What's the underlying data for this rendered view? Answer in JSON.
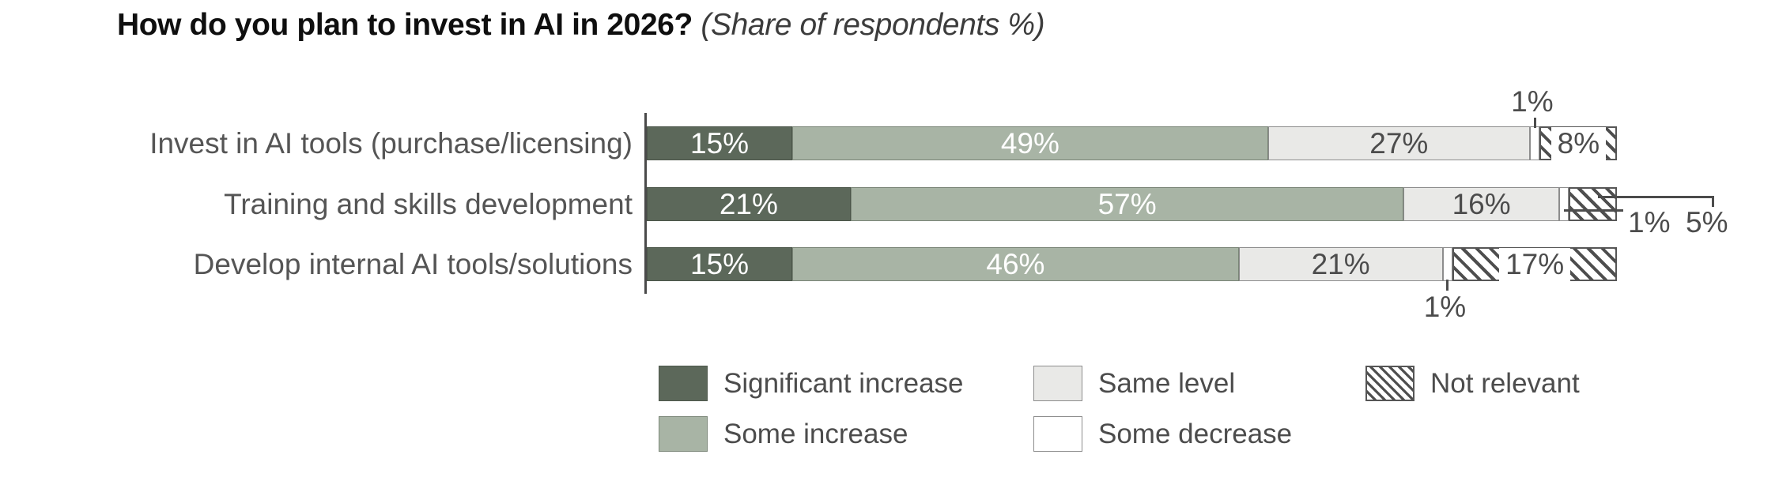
{
  "title": {
    "main": "How do you plan to invest in AI in 2026?",
    "subtitle": "(Share of respondents %)"
  },
  "chart_data": {
    "type": "bar",
    "orientation": "horizontal",
    "stacked": true,
    "unit": "%",
    "title": "How do you plan to invest in AI in 2026?",
    "subtitle": "(Share of respondents %)",
    "xlim": [
      0,
      100
    ],
    "grid": false,
    "legend_position": "bottom",
    "categories": [
      "Invest in AI tools (purchase/licensing)",
      "Training and skills development",
      "Develop internal AI tools/solutions"
    ],
    "series": [
      {
        "name": "Significant increase",
        "color": "#5c685a",
        "values": [
          15,
          21,
          15
        ]
      },
      {
        "name": "Some increase",
        "color": "#a8b4a5",
        "values": [
          49,
          57,
          46
        ]
      },
      {
        "name": "Same level",
        "color": "#e9e9e7",
        "values": [
          27,
          16,
          21
        ]
      },
      {
        "name": "Some decrease",
        "color": "#ffffff",
        "values": [
          1,
          1,
          1
        ]
      },
      {
        "name": "Not relevant",
        "color": "hatched",
        "values": [
          8,
          5,
          17
        ]
      }
    ],
    "value_label_format": "{v}%",
    "callouts": [
      {
        "row": 0,
        "series": 3,
        "text": "1%",
        "placement": "above"
      },
      {
        "row": 1,
        "series": 3,
        "text": "1%",
        "placement": "right-first"
      },
      {
        "row": 1,
        "series": 4,
        "text": "5%",
        "placement": "right-second"
      },
      {
        "row": 2,
        "series": 3,
        "text": "1%",
        "placement": "below"
      }
    ]
  },
  "legend": {
    "items": [
      {
        "label": "Significant increase",
        "swatch": "significant-increase-solid-dark-green"
      },
      {
        "label": "Some increase",
        "swatch": "some-increase-solid-sage-green"
      },
      {
        "label": "Same level",
        "swatch": "same-level-light-gray"
      },
      {
        "label": "Some decrease",
        "swatch": "some-decrease-white"
      },
      {
        "label": "Not relevant",
        "swatch": "not-relevant-diagonal-hatch"
      }
    ]
  },
  "colors": {
    "significant_increase": "#5c685a",
    "some_increase": "#a8b4a5",
    "same_level": "#e9e9e7",
    "some_decrease": "#ffffff",
    "not_relevant_hatch_line": "#4e4e4e",
    "text": "#4c4c4c",
    "axis": "#4a4a4a"
  }
}
